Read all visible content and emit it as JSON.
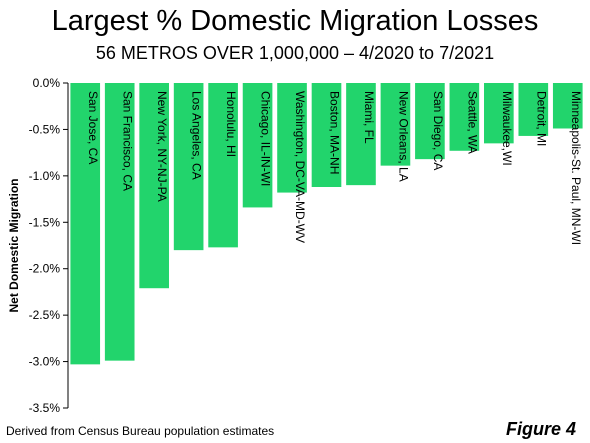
{
  "chart_data": {
    "type": "bar",
    "title": "Largest % Domestic Migration Losses",
    "subtitle": "56 METROS OVER 1,000,000 – 4/2020 to 7/2021",
    "ylabel": "Net Domestic Migration",
    "xlabel": "",
    "ylim": [
      -3.5,
      0
    ],
    "yticks": [
      "0.0%",
      "-0.5%",
      "-1.0%",
      "-1.5%",
      "-2.0%",
      "-2.5%",
      "-3.0%",
      "-3.5%"
    ],
    "ytick_values": [
      0,
      -0.5,
      -1.0,
      -1.5,
      -2.0,
      -2.5,
      -3.0,
      -3.5
    ],
    "categories": [
      "San Jose, CA",
      "San Francisco, CA",
      "New York, NY-NJ-PA",
      "Los Angeles, CA",
      "Honolulu, HI",
      "Chicago, IL-IN-WI",
      "Washington, DC-VA-MD-WV",
      "Boston, MA-NH",
      "Miami, FL",
      "New Orleans, LA",
      "San Diego, CA",
      "Seattle, WA",
      "Milwaukee,WI",
      "Detroit, MI",
      "Minneapolis-St. Paul, MN-WI"
    ],
    "values": [
      -3.03,
      -2.99,
      -2.21,
      -1.8,
      -1.77,
      -1.34,
      -1.18,
      -1.12,
      -1.1,
      -0.89,
      -0.82,
      -0.73,
      -0.65,
      -0.57,
      -0.49
    ],
    "bar_color": "#22d46c",
    "grid": false,
    "legend": "none"
  },
  "footer": {
    "source": "Derived from Census Bureau population estimates",
    "figure": "Figure 4"
  }
}
